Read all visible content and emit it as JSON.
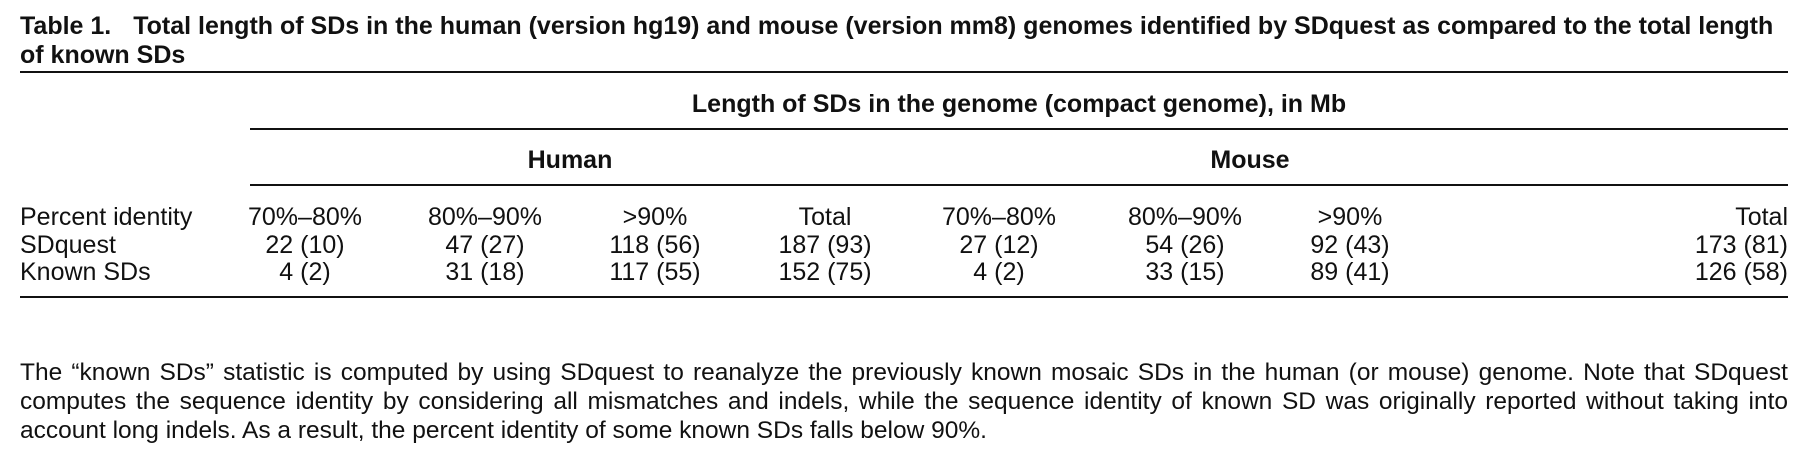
{
  "caption": {
    "label": "Table 1.",
    "title": "Total length of SDs in the human (version hg19) and mouse (version mm8) genomes identified by SDquest as compared to the total length of known SDs"
  },
  "table": {
    "spanner": "Length of SDs in the genome (compact genome), in Mb",
    "groups": [
      "Human",
      "Mouse"
    ],
    "row_header": "Percent identity",
    "columns": [
      "70%–80%",
      "80%–90%",
      ">90%",
      "Total",
      "70%–80%",
      "80%–90%",
      ">90%",
      "Total"
    ],
    "rows": [
      {
        "label": "SDquest",
        "cells": [
          "22 (10)",
          "47 (27)",
          "118 (56)",
          "187 (93)",
          "27 (12)",
          "54 (26)",
          "92 (43)",
          "173 (81)"
        ]
      },
      {
        "label": "Known SDs",
        "cells": [
          "4 (2)",
          "31 (18)",
          "117 (55)",
          "152 (75)",
          "4 (2)",
          "33 (15)",
          "89 (41)",
          "126 (58)"
        ]
      }
    ]
  },
  "footnote": "The “known SDs” statistic is computed by using SDquest to reanalyze the previously known mosaic SDs in the human (or mouse) genome. Note that SDquest computes the sequence identity by considering all mismatches and indels, while the sequence identity of known SD was originally reported without taking into account long indels. As a result, the percent identity of some known SDs falls below 90%."
}
